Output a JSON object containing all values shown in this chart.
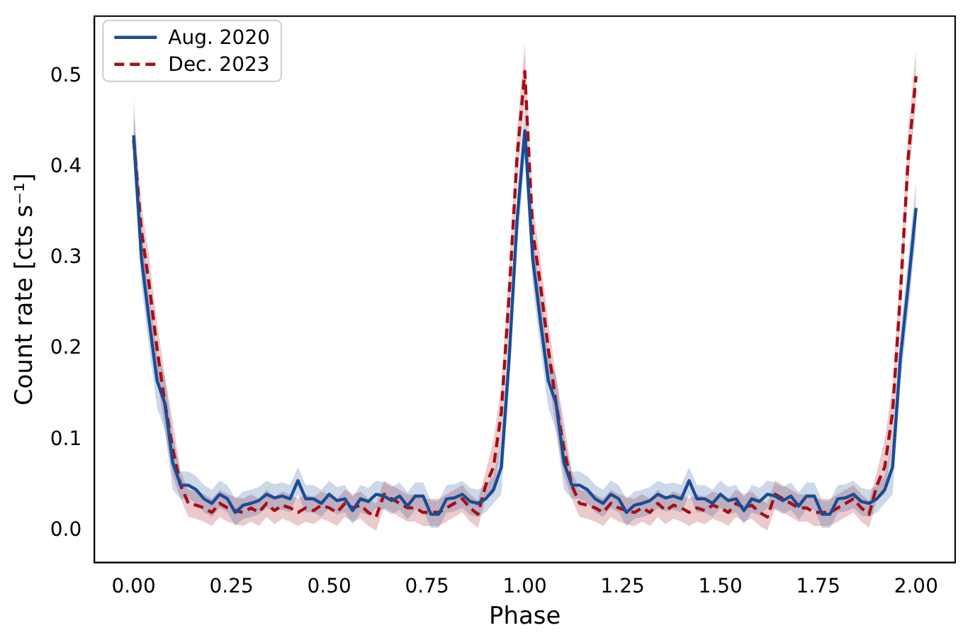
{
  "chart_data": {
    "type": "line",
    "xlabel": "Phase",
    "ylabel": "Count rate [cts s⁻¹]",
    "x": [
      0,
      0.02,
      0.04,
      0.06,
      0.08,
      0.1,
      0.12,
      0.14,
      0.16,
      0.18,
      0.2,
      0.22,
      0.24,
      0.26,
      0.28,
      0.3,
      0.32,
      0.34,
      0.36,
      0.38,
      0.4,
      0.42,
      0.44,
      0.46,
      0.48,
      0.5,
      0.52,
      0.54,
      0.56,
      0.58,
      0.6,
      0.62,
      0.64,
      0.66,
      0.68,
      0.7,
      0.72,
      0.74,
      0.76,
      0.78,
      0.8,
      0.82,
      0.84,
      0.86,
      0.88,
      0.9,
      0.92,
      0.94,
      0.96,
      0.98,
      1,
      1.02,
      1.04,
      1.06,
      1.08,
      1.1,
      1.12,
      1.14,
      1.16,
      1.18,
      1.2,
      1.22,
      1.24,
      1.26,
      1.28,
      1.3,
      1.32,
      1.34,
      1.36,
      1.38,
      1.4,
      1.42,
      1.44,
      1.46,
      1.48,
      1.5,
      1.52,
      1.54,
      1.56,
      1.58,
      1.6,
      1.62,
      1.64,
      1.66,
      1.68,
      1.7,
      1.72,
      1.74,
      1.76,
      1.78,
      1.8,
      1.82,
      1.84,
      1.86,
      1.88,
      1.9,
      1.92,
      1.94,
      1.96,
      1.98,
      2
    ],
    "series": [
      {
        "name": "Aug. 2020",
        "color": "#1a4c94",
        "line_style": "solid",
        "values": [
          0.435,
          0.3,
          0.23,
          0.165,
          0.14,
          0.075,
          0.05,
          0.05,
          0.045,
          0.035,
          0.03,
          0.04,
          0.035,
          0.02,
          0.028,
          0.03,
          0.033,
          0.04,
          0.036,
          0.038,
          0.035,
          0.055,
          0.035,
          0.035,
          0.03,
          0.04,
          0.033,
          0.035,
          0.022,
          0.035,
          0.032,
          0.04,
          0.038,
          0.033,
          0.038,
          0.027,
          0.038,
          0.038,
          0.018,
          0.018,
          0.035,
          0.036,
          0.04,
          0.032,
          0.03,
          0.035,
          0.045,
          0.07,
          0.19,
          0.34,
          0.44,
          0.3,
          0.23,
          0.165,
          0.14,
          0.075,
          0.05,
          0.05,
          0.045,
          0.035,
          0.03,
          0.04,
          0.035,
          0.02,
          0.028,
          0.03,
          0.033,
          0.04,
          0.036,
          0.038,
          0.035,
          0.055,
          0.035,
          0.035,
          0.03,
          0.04,
          0.033,
          0.035,
          0.022,
          0.035,
          0.032,
          0.04,
          0.038,
          0.033,
          0.038,
          0.027,
          0.038,
          0.038,
          0.018,
          0.018,
          0.035,
          0.036,
          0.04,
          0.032,
          0.03,
          0.035,
          0.045,
          0.07,
          0.19,
          0.27,
          0.355
        ],
        "lower": [
          0.405,
          0.27,
          0.2,
          0.135,
          0.11,
          0.045,
          0.035,
          0.035,
          0.03,
          0.02,
          0.015,
          0.025,
          0.02,
          0.005,
          0.013,
          0.015,
          0.018,
          0.025,
          0.021,
          0.023,
          0.02,
          0.04,
          0.02,
          0.02,
          0.015,
          0.025,
          0.018,
          0.02,
          0.007,
          0.02,
          0.017,
          0.025,
          0.023,
          0.018,
          0.023,
          0.012,
          0.023,
          0.023,
          0.003,
          0.003,
          0.02,
          0.021,
          0.025,
          0.017,
          0.015,
          0.02,
          0.03,
          0.04,
          0.16,
          0.31,
          0.41,
          0.27,
          0.2,
          0.135,
          0.11,
          0.045,
          0.035,
          0.035,
          0.03,
          0.02,
          0.015,
          0.025,
          0.02,
          0.005,
          0.013,
          0.015,
          0.018,
          0.025,
          0.021,
          0.023,
          0.02,
          0.04,
          0.02,
          0.02,
          0.015,
          0.025,
          0.018,
          0.02,
          0.007,
          0.02,
          0.017,
          0.025,
          0.023,
          0.018,
          0.023,
          0.012,
          0.023,
          0.023,
          0.003,
          0.003,
          0.02,
          0.021,
          0.025,
          0.017,
          0.015,
          0.02,
          0.03,
          0.04,
          0.16,
          0.24,
          0.325
        ],
        "upper": [
          0.48,
          0.33,
          0.26,
          0.195,
          0.17,
          0.105,
          0.065,
          0.065,
          0.06,
          0.05,
          0.045,
          0.055,
          0.05,
          0.035,
          0.043,
          0.045,
          0.048,
          0.055,
          0.051,
          0.053,
          0.05,
          0.07,
          0.05,
          0.05,
          0.045,
          0.055,
          0.048,
          0.05,
          0.037,
          0.05,
          0.047,
          0.055,
          0.053,
          0.048,
          0.053,
          0.042,
          0.053,
          0.053,
          0.033,
          0.033,
          0.05,
          0.051,
          0.055,
          0.047,
          0.045,
          0.05,
          0.06,
          0.1,
          0.22,
          0.37,
          0.47,
          0.33,
          0.26,
          0.195,
          0.17,
          0.105,
          0.065,
          0.065,
          0.06,
          0.05,
          0.045,
          0.055,
          0.05,
          0.035,
          0.043,
          0.045,
          0.048,
          0.055,
          0.051,
          0.053,
          0.05,
          0.07,
          0.05,
          0.05,
          0.045,
          0.055,
          0.048,
          0.05,
          0.037,
          0.05,
          0.047,
          0.055,
          0.053,
          0.048,
          0.053,
          0.042,
          0.053,
          0.053,
          0.033,
          0.033,
          0.05,
          0.051,
          0.055,
          0.047,
          0.045,
          0.05,
          0.06,
          0.1,
          0.22,
          0.3,
          0.385
        ]
      },
      {
        "name": "Dec. 2023",
        "color": "#a50f15",
        "line_style": "dashed",
        "values": [
          0.43,
          0.33,
          0.27,
          0.2,
          0.14,
          0.09,
          0.05,
          0.03,
          0.028,
          0.025,
          0.02,
          0.03,
          0.025,
          0.022,
          0.02,
          0.025,
          0.02,
          0.03,
          0.022,
          0.028,
          0.025,
          0.02,
          0.025,
          0.022,
          0.028,
          0.025,
          0.02,
          0.03,
          0.025,
          0.028,
          0.02,
          0.015,
          0.04,
          0.035,
          0.03,
          0.025,
          0.025,
          0.02,
          0.02,
          0.02,
          0.025,
          0.03,
          0.035,
          0.025,
          0.018,
          0.05,
          0.07,
          0.13,
          0.26,
          0.41,
          0.505,
          0.33,
          0.27,
          0.2,
          0.14,
          0.09,
          0.05,
          0.03,
          0.028,
          0.025,
          0.02,
          0.03,
          0.025,
          0.022,
          0.02,
          0.025,
          0.02,
          0.03,
          0.022,
          0.028,
          0.025,
          0.02,
          0.025,
          0.022,
          0.028,
          0.025,
          0.02,
          0.03,
          0.025,
          0.028,
          0.02,
          0.015,
          0.04,
          0.035,
          0.03,
          0.025,
          0.025,
          0.02,
          0.02,
          0.02,
          0.025,
          0.03,
          0.035,
          0.025,
          0.018,
          0.05,
          0.07,
          0.13,
          0.26,
          0.41,
          0.5
        ],
        "lower": [
          0.4,
          0.3,
          0.24,
          0.17,
          0.11,
          0.06,
          0.035,
          0.015,
          0.013,
          0.01,
          0.005,
          0.015,
          0.01,
          0.007,
          0.005,
          0.01,
          0.005,
          0.015,
          0.007,
          0.013,
          0.01,
          0.005,
          0.01,
          0.007,
          0.013,
          0.01,
          0.005,
          0.015,
          0.01,
          0.013,
          0.005,
          0,
          0.025,
          0.02,
          0.015,
          0.01,
          0.01,
          0.005,
          0.005,
          0.005,
          0.01,
          0.015,
          0.02,
          0.01,
          0.003,
          0.035,
          0.04,
          0.1,
          0.23,
          0.38,
          0.475,
          0.3,
          0.24,
          0.17,
          0.11,
          0.06,
          0.035,
          0.015,
          0.013,
          0.01,
          0.005,
          0.015,
          0.01,
          0.007,
          0.005,
          0.01,
          0.005,
          0.015,
          0.007,
          0.013,
          0.01,
          0.005,
          0.01,
          0.007,
          0.013,
          0.01,
          0.005,
          0.015,
          0.01,
          0.013,
          0.005,
          0,
          0.025,
          0.02,
          0.015,
          0.01,
          0.01,
          0.005,
          0.005,
          0.005,
          0.01,
          0.015,
          0.02,
          0.01,
          0.003,
          0.035,
          0.04,
          0.1,
          0.23,
          0.38,
          0.47
        ],
        "upper": [
          0.46,
          0.36,
          0.3,
          0.23,
          0.17,
          0.12,
          0.065,
          0.045,
          0.043,
          0.04,
          0.035,
          0.045,
          0.04,
          0.037,
          0.035,
          0.04,
          0.035,
          0.045,
          0.037,
          0.043,
          0.04,
          0.035,
          0.04,
          0.037,
          0.043,
          0.04,
          0.035,
          0.045,
          0.04,
          0.043,
          0.035,
          0.03,
          0.055,
          0.05,
          0.045,
          0.04,
          0.04,
          0.035,
          0.035,
          0.035,
          0.04,
          0.045,
          0.05,
          0.04,
          0.033,
          0.065,
          0.1,
          0.16,
          0.29,
          0.44,
          0.535,
          0.36,
          0.3,
          0.23,
          0.17,
          0.12,
          0.065,
          0.045,
          0.043,
          0.04,
          0.035,
          0.045,
          0.04,
          0.037,
          0.035,
          0.04,
          0.035,
          0.045,
          0.037,
          0.043,
          0.04,
          0.035,
          0.04,
          0.037,
          0.043,
          0.04,
          0.035,
          0.045,
          0.04,
          0.043,
          0.035,
          0.03,
          0.055,
          0.05,
          0.045,
          0.04,
          0.04,
          0.035,
          0.035,
          0.035,
          0.04,
          0.045,
          0.05,
          0.04,
          0.033,
          0.065,
          0.1,
          0.16,
          0.29,
          0.44,
          0.53
        ]
      }
    ],
    "xlim": [
      -0.1,
      2.1
    ],
    "ylim": [
      -0.035,
      0.566
    ],
    "xticks": [
      {
        "value": 0,
        "label": "0.00"
      },
      {
        "value": 0.25,
        "label": "0.25"
      },
      {
        "value": 0.5,
        "label": "0.50"
      },
      {
        "value": 0.75,
        "label": "0.75"
      },
      {
        "value": 1,
        "label": "1.00"
      },
      {
        "value": 1.25,
        "label": "1.25"
      },
      {
        "value": 1.5,
        "label": "1.50"
      },
      {
        "value": 1.75,
        "label": "1.75"
      },
      {
        "value": 2,
        "label": "2.00"
      }
    ],
    "yticks": [
      {
        "value": 0,
        "label": "0.0"
      },
      0.1,
      0.2,
      0.3,
      0.4,
      0.5
    ],
    "grid": false,
    "legend": "top left",
    "marker": "none"
  }
}
